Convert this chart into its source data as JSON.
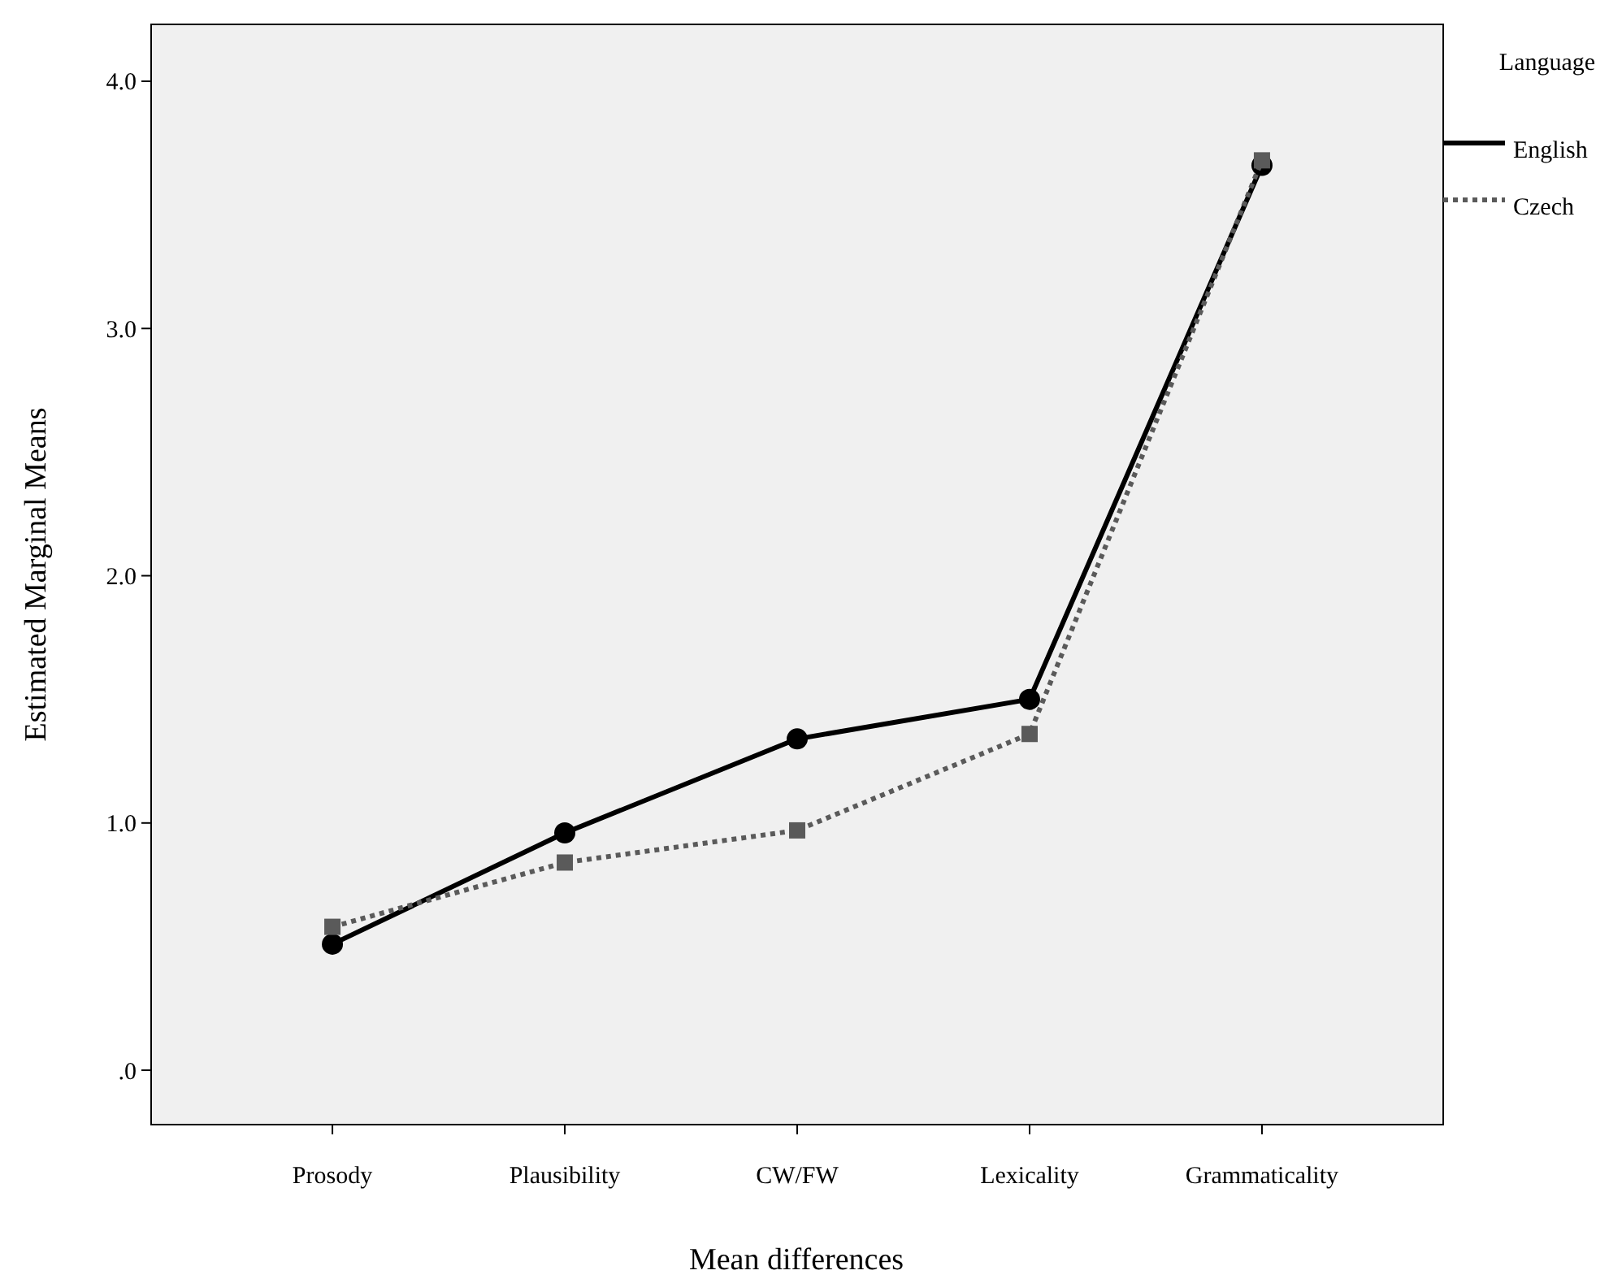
{
  "chart_data": {
    "type": "line",
    "xlabel": "Mean differences",
    "ylabel": "Estimated Marginal Means",
    "legend_title": "Language",
    "legend": "top right",
    "grid": false,
    "categories": [
      "Prosody",
      "Plausibility",
      "CW/FW",
      "Lexicality",
      "Grammaticality"
    ],
    "ylim": [
      -0.22,
      4.23
    ],
    "yticks": [
      {
        "value": 0,
        "label": ".0"
      },
      {
        "value": 1,
        "label": "1.0"
      },
      {
        "value": 2,
        "label": "2.0"
      },
      {
        "value": 3,
        "label": "3.0"
      },
      {
        "value": 4,
        "label": "4.0"
      }
    ],
    "series": [
      {
        "name": "English",
        "color": "#000000",
        "marker": "circle",
        "line_style": "solid",
        "values": [
          0.51,
          0.96,
          1.34,
          1.5,
          3.66
        ]
      },
      {
        "name": "Czech",
        "color": "#5a5a5a",
        "marker": "square",
        "line_style": "dotted",
        "values": [
          0.58,
          0.84,
          0.97,
          1.36,
          3.68
        ]
      }
    ]
  }
}
